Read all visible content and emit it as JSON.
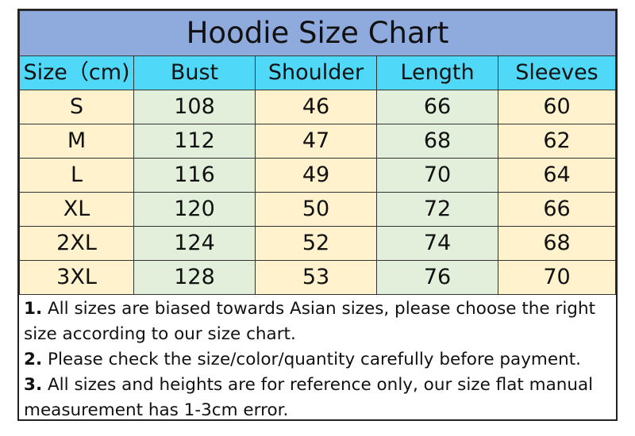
{
  "title": "Hoodie Size Chart",
  "colors": {
    "title_bg": "#8faadc",
    "header_bg": "#4fd8f7",
    "yellow": "#fff2cc",
    "green": "#e2efda"
  },
  "headers": [
    "Size（cm)",
    "Bust",
    "Shoulder",
    "Length",
    "Sleeves"
  ],
  "rows": [
    [
      "S",
      "108",
      "46",
      "66",
      "60"
    ],
    [
      "M",
      "112",
      "47",
      "68",
      "62"
    ],
    [
      "L",
      "116",
      "49",
      "70",
      "64"
    ],
    [
      "XL",
      "120",
      "50",
      "72",
      "66"
    ],
    [
      "2XL",
      "124",
      "52",
      "74",
      "68"
    ],
    [
      "3XL",
      "128",
      "53",
      "76",
      "70"
    ]
  ],
  "notes": [
    {
      "num": "1.",
      "text": " All sizes are biased towards Asian sizes, please choose the right size according to our size chart."
    },
    {
      "num": "2.",
      "text": " Please check the size/color/quantity carefully before payment."
    },
    {
      "num": "3.",
      "text": " All sizes and heights are for reference only, our size flat manual measurement has 1-3cm error."
    }
  ]
}
